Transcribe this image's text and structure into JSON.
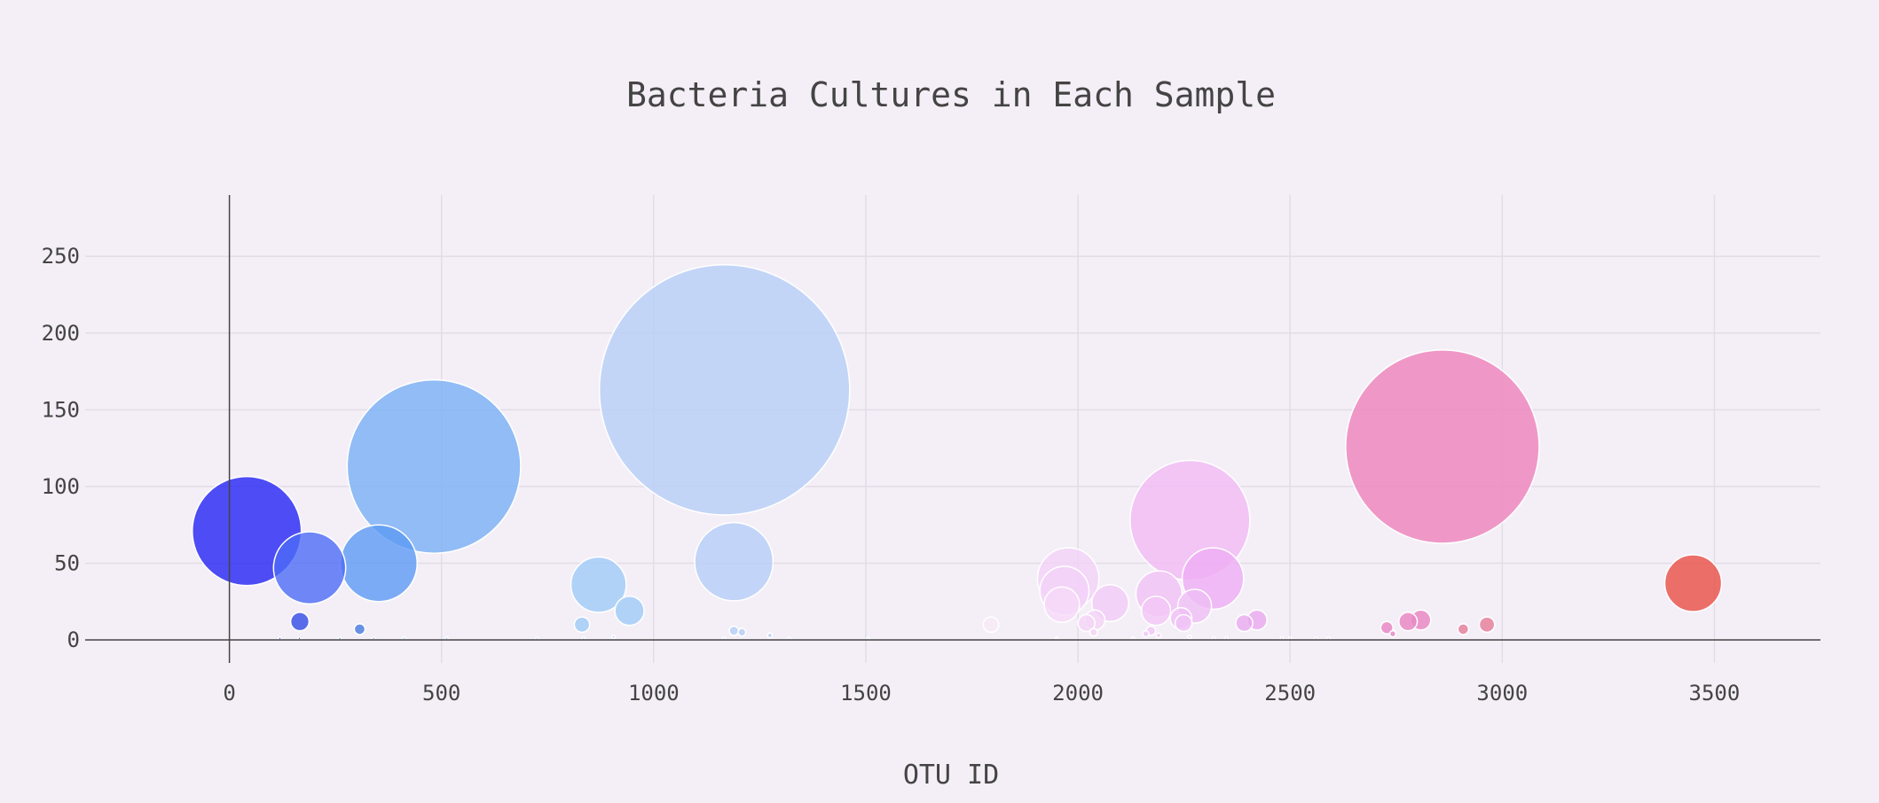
{
  "chart_data": {
    "type": "scatter",
    "title": "Bacteria Cultures in Each Sample",
    "xlabel": "OTU ID",
    "ylabel": "",
    "xlim": [
      -340,
      3750
    ],
    "ylim": [
      -15,
      290
    ],
    "xticks": [
      0,
      500,
      1000,
      1500,
      2000,
      2500,
      3000,
      3500
    ],
    "yticks": [
      0,
      50,
      100,
      150,
      200,
      250
    ],
    "grid": true,
    "legend": "none",
    "colorscale": "Earth",
    "points": [
      {
        "x": 1167,
        "y": 163,
        "color": "#b8cff7",
        "opacity": 0.82
      },
      {
        "x": 2859,
        "y": 126,
        "color": "#ed88c0",
        "opacity": 0.85
      },
      {
        "x": 482,
        "y": 113,
        "color": "#7fb3f5",
        "opacity": 0.85
      },
      {
        "x": 2264,
        "y": 78,
        "color": "#f1bdf5",
        "opacity": 0.85
      },
      {
        "x": 41,
        "y": 71,
        "color": "#2f2ff4",
        "opacity": 0.85
      },
      {
        "x": 1189,
        "y": 51,
        "color": "#b8cff7",
        "opacity": 0.85
      },
      {
        "x": 352,
        "y": 50,
        "color": "#5d9af4",
        "opacity": 0.8
      },
      {
        "x": 189,
        "y": 47,
        "color": "#4e6cf6",
        "opacity": 0.8
      },
      {
        "x": 1977,
        "y": 40,
        "color": "#f3d2f7",
        "opacity": 0.8
      },
      {
        "x": 2318,
        "y": 40,
        "color": "#eeacf4",
        "opacity": 0.8
      },
      {
        "x": 3450,
        "y": 37,
        "color": "#e9574f",
        "opacity": 0.85
      },
      {
        "x": 870,
        "y": 36,
        "color": "#a5cdf7",
        "opacity": 0.85
      },
      {
        "x": 1968,
        "y": 32,
        "color": "#f3d2f7",
        "opacity": 0.8
      },
      {
        "x": 2191,
        "y": 30,
        "color": "#f1c1f5",
        "opacity": 0.8
      },
      {
        "x": 1962,
        "y": 23,
        "color": "#f6daf8",
        "opacity": 0.8
      },
      {
        "x": 2076,
        "y": 24,
        "color": "#f3cbf6",
        "opacity": 0.8
      },
      {
        "x": 2275,
        "y": 22,
        "color": "#efbef5",
        "opacity": 0.8
      },
      {
        "x": 943,
        "y": 19,
        "color": "#a5cdf7",
        "opacity": 0.85
      },
      {
        "x": 2184,
        "y": 19,
        "color": "#f2c6f6",
        "opacity": 0.8
      },
      {
        "x": 2243,
        "y": 14,
        "color": "#f0bff5",
        "opacity": 0.8
      },
      {
        "x": 2422,
        "y": 13,
        "color": "#eaa9ee",
        "opacity": 0.8
      },
      {
        "x": 2808,
        "y": 13,
        "color": "#e98ac4",
        "opacity": 0.85
      },
      {
        "x": 2040,
        "y": 13,
        "color": "#f4d4f6",
        "opacity": 0.8
      },
      {
        "x": 166,
        "y": 12,
        "color": "#3c55e6",
        "opacity": 0.85
      },
      {
        "x": 2778,
        "y": 12,
        "color": "#e98ac4",
        "opacity": 0.85
      },
      {
        "x": 2020,
        "y": 11,
        "color": "#f4d4f6",
        "opacity": 0.8
      },
      {
        "x": 2392,
        "y": 11,
        "color": "#eaaaf0",
        "opacity": 0.8
      },
      {
        "x": 2249,
        "y": 11,
        "color": "#f0c3f6",
        "opacity": 0.8
      },
      {
        "x": 2964,
        "y": 10,
        "color": "#e6839e",
        "opacity": 0.85
      },
      {
        "x": 831,
        "y": 10,
        "color": "#a5cdf7",
        "opacity": 0.85
      },
      {
        "x": 1795,
        "y": 10,
        "color": "#f6eaf7",
        "opacity": 0.85
      },
      {
        "x": 2728,
        "y": 8,
        "color": "#e98ac4",
        "opacity": 0.85
      },
      {
        "x": 2908,
        "y": 7,
        "color": "#e6839e",
        "opacity": 0.85
      },
      {
        "x": 307,
        "y": 7,
        "color": "#4f7fe0",
        "opacity": 0.85
      },
      {
        "x": 1189,
        "y": 6,
        "color": "#b8cff7",
        "opacity": 0.85
      },
      {
        "x": 2172,
        "y": 6,
        "color": "#f2c6f6",
        "opacity": 0.8
      },
      {
        "x": 1208,
        "y": 5,
        "color": "#b8cff7",
        "opacity": 0.85
      },
      {
        "x": 2037,
        "y": 5,
        "color": "#f4d4f6",
        "opacity": 0.8
      },
      {
        "x": 2160,
        "y": 4,
        "color": "#f2c6f6",
        "opacity": 0.8
      },
      {
        "x": 2742,
        "y": 4,
        "color": "#e98ac4",
        "opacity": 0.85
      },
      {
        "x": 1274,
        "y": 3,
        "color": "#b8cff7",
        "opacity": 0.85
      },
      {
        "x": 2190,
        "y": 3,
        "color": "#f2c6f6",
        "opacity": 0.8
      },
      {
        "x": 905,
        "y": 2,
        "color": "#a5cdf7",
        "opacity": 0.85
      },
      {
        "x": 2263,
        "y": 2,
        "color": "#f0c3f6",
        "opacity": 0.8
      },
      {
        "x": 119,
        "y": 1,
        "color": "#3c55e6",
        "opacity": 0.85
      },
      {
        "x": 165,
        "y": 1,
        "color": "#3c55e6",
        "opacity": 0.85
      },
      {
        "x": 260,
        "y": 1,
        "color": "#4f7fe0",
        "opacity": 0.85
      },
      {
        "x": 340,
        "y": 1,
        "color": "#5d9af4",
        "opacity": 0.85
      },
      {
        "x": 412,
        "y": 1,
        "color": "#7fb3f5",
        "opacity": 0.85
      },
      {
        "x": 512,
        "y": 1,
        "color": "#7fb3f5",
        "opacity": 0.85
      },
      {
        "x": 725,
        "y": 1,
        "color": "#a5cdf7",
        "opacity": 0.85
      },
      {
        "x": 835,
        "y": 1,
        "color": "#a5cdf7",
        "opacity": 0.85
      },
      {
        "x": 1165,
        "y": 1,
        "color": "#b8cff7",
        "opacity": 0.85
      },
      {
        "x": 1319,
        "y": 1,
        "color": "#b8cff7",
        "opacity": 0.85
      },
      {
        "x": 1505,
        "y": 1,
        "color": "#c8d8f7",
        "opacity": 0.85
      },
      {
        "x": 1950,
        "y": 1,
        "color": "#f6daf8",
        "opacity": 0.85
      },
      {
        "x": 2130,
        "y": 1,
        "color": "#f2c6f6",
        "opacity": 0.85
      },
      {
        "x": 2320,
        "y": 1,
        "color": "#eeacf4",
        "opacity": 0.85
      },
      {
        "x": 2350,
        "y": 1,
        "color": "#eeacf4",
        "opacity": 0.85
      },
      {
        "x": 2480,
        "y": 1,
        "color": "#eaaaf0",
        "opacity": 0.85
      },
      {
        "x": 2500,
        "y": 1,
        "color": "#eaaaf0",
        "opacity": 0.85
      },
      {
        "x": 2560,
        "y": 1,
        "color": "#e9a0e0",
        "opacity": 0.85
      },
      {
        "x": 2590,
        "y": 1,
        "color": "#e9a0e0",
        "opacity": 0.85
      }
    ]
  }
}
